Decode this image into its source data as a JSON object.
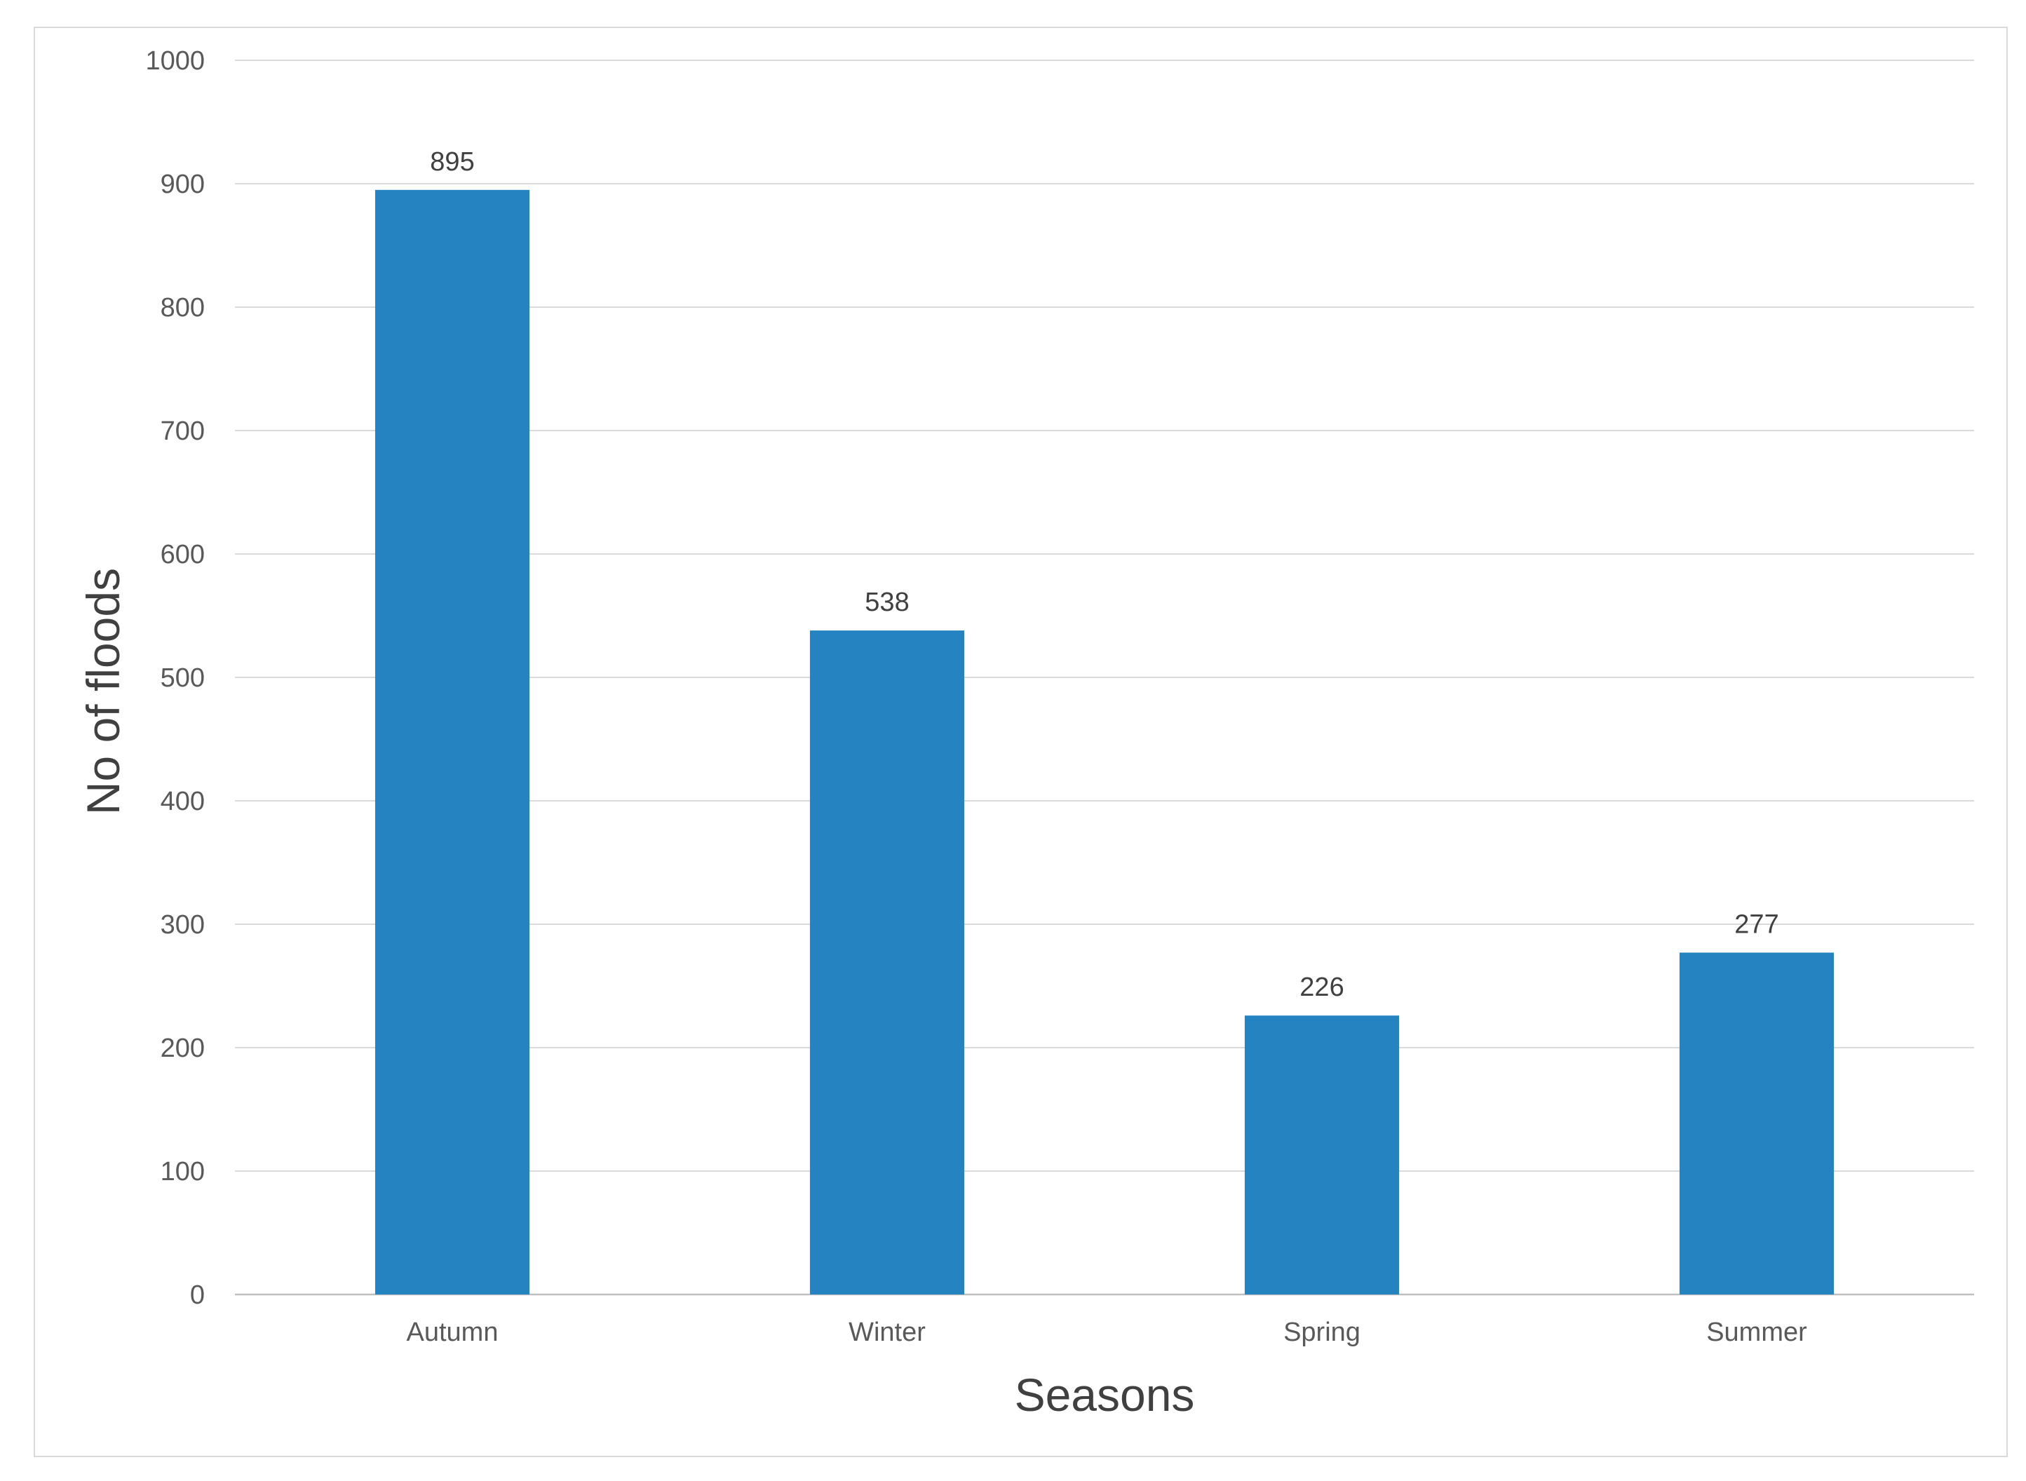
{
  "chart_data": {
    "type": "bar",
    "title": "",
    "xlabel": "Seasons",
    "ylabel": "No of floods",
    "categories": [
      "Autumn",
      "Winter",
      "Spring",
      "Summer"
    ],
    "values": [
      895,
      538,
      226,
      277
    ],
    "data_labels": [
      "895",
      "538",
      "226",
      "277"
    ],
    "ylim": [
      0,
      1000
    ],
    "yticks": [
      0,
      100,
      200,
      300,
      400,
      500,
      600,
      700,
      800,
      900,
      1000
    ],
    "grid": true,
    "legend": "none",
    "bar_color": "#2483c0"
  }
}
